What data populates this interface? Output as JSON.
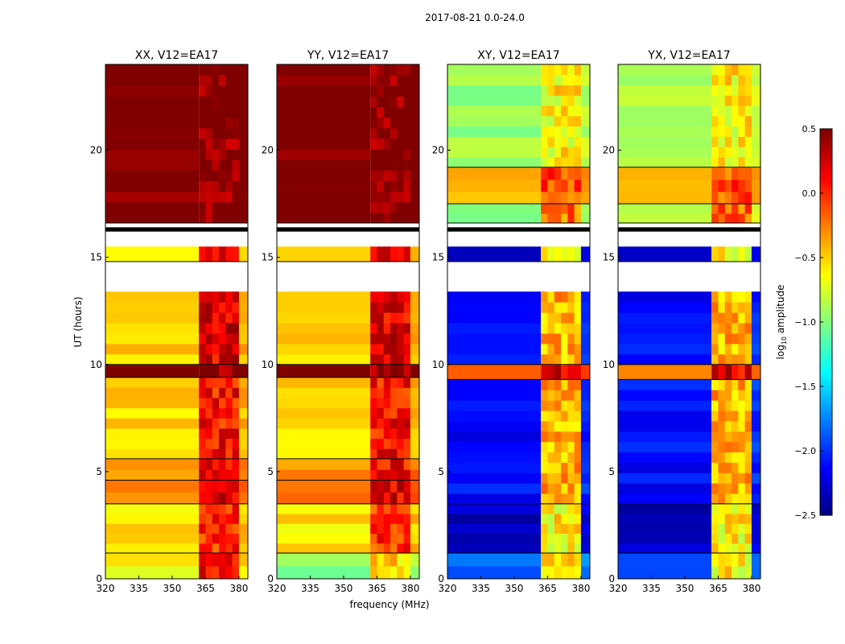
{
  "chart_data": {
    "type": "heatmap",
    "suptitle": "2017-08-21 0.0-24.0",
    "xlabel": "frequency (MHz)",
    "ylabel": "UT (hours)",
    "xlim": [
      320,
      384
    ],
    "ylim": [
      0,
      24
    ],
    "xticks": [
      320,
      335,
      350,
      365,
      380
    ],
    "yticks": [
      0,
      5,
      10,
      15,
      20
    ],
    "rfi_band_mhz": [
      362,
      380
    ],
    "colorbar": {
      "label": "log10 amplitude",
      "label_main": "log",
      "label_sub": "10",
      "label_rest": " amplitude",
      "vmin": -2.5,
      "vmax": 0.5,
      "ticks": [
        "0.5",
        "0.0",
        "−0.5",
        "−1.0",
        "−1.5",
        "−2.0",
        "−2.5"
      ],
      "tick_values": [
        0.5,
        0.0,
        -0.5,
        -1.0,
        -1.5,
        -2.0,
        -2.5
      ],
      "colormap": "jet"
    },
    "panels": [
      {
        "title": "XX, V12=EA17",
        "segments": [
          [
            0,
            1.2,
            -0.6,
            0.1
          ],
          [
            1.2,
            3.5,
            -0.55,
            0.0
          ],
          [
            3.5,
            4.6,
            -0.2,
            0.2
          ],
          [
            4.6,
            5.6,
            -0.3,
            0.1
          ],
          [
            5.6,
            9.4,
            -0.5,
            0.1
          ],
          [
            9.4,
            10.0,
            0.5,
            0.5
          ],
          [
            10.0,
            13.4,
            -0.5,
            0.2
          ],
          [
            14.8,
            15.5,
            -0.5,
            0.2
          ],
          [
            16.6,
            24,
            0.5,
            0.5
          ]
        ]
      },
      {
        "title": "YY, V12=EA17",
        "segments": [
          [
            0,
            1.2,
            -1.0,
            -0.5
          ],
          [
            1.2,
            3.5,
            -0.55,
            0.0
          ],
          [
            3.5,
            4.6,
            -0.2,
            0.2
          ],
          [
            4.6,
            5.6,
            -0.3,
            0.1
          ],
          [
            5.6,
            9.4,
            -0.5,
            0.1
          ],
          [
            9.4,
            10.0,
            0.5,
            0.5
          ],
          [
            10.0,
            13.4,
            -0.5,
            0.2
          ],
          [
            14.8,
            15.5,
            -0.5,
            0.2
          ],
          [
            16.6,
            24,
            0.5,
            0.5
          ]
        ]
      },
      {
        "title": "XY, V12=EA17",
        "segments": [
          [
            0,
            1.2,
            -1.8,
            -0.6
          ],
          [
            1.2,
            3.5,
            -2.3,
            -0.6
          ],
          [
            3.5,
            9.3,
            -2.1,
            -0.4
          ],
          [
            9.3,
            10.0,
            -0.2,
            0.2
          ],
          [
            10.0,
            13.4,
            -2.1,
            -0.4
          ],
          [
            14.8,
            15.5,
            -2.3,
            -0.6
          ],
          [
            16.6,
            17.5,
            -0.9,
            -0.2
          ],
          [
            17.5,
            19.2,
            -0.4,
            -0.1
          ],
          [
            19.2,
            24,
            -0.9,
            -0.6
          ]
        ]
      },
      {
        "title": "YX, V12=EA17",
        "segments": [
          [
            0,
            1.2,
            -1.8,
            -0.6
          ],
          [
            1.2,
            3.5,
            -2.3,
            -0.6
          ],
          [
            3.5,
            9.3,
            -2.1,
            -0.4
          ],
          [
            9.3,
            10.0,
            -0.2,
            0.2
          ],
          [
            10.0,
            13.4,
            -2.1,
            -0.4
          ],
          [
            14.8,
            15.5,
            -2.3,
            -0.6
          ],
          [
            16.6,
            17.5,
            -0.9,
            -0.2
          ],
          [
            17.5,
            19.2,
            -0.4,
            -0.1
          ],
          [
            19.2,
            24,
            -0.9,
            -0.6
          ]
        ]
      }
    ],
    "flagged_hours": [
      [
        13.4,
        14.8
      ],
      [
        15.5,
        16.2
      ]
    ]
  }
}
